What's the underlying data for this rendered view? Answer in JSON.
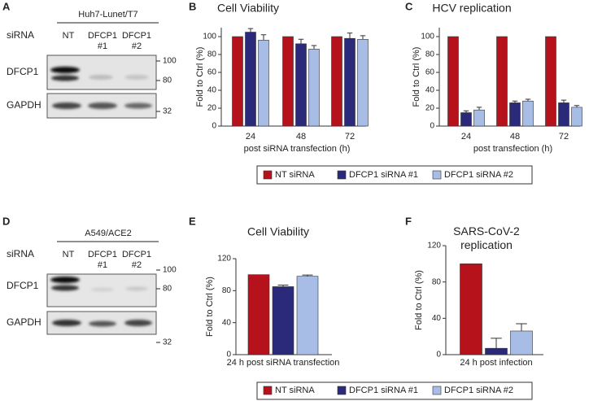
{
  "blots": [
    {
      "panel": "A",
      "cell_line": "Huh7-Lunet/T7",
      "row_header": "siRNA",
      "lanes": [
        "NT",
        "DFCP1 #1",
        "DFCP1 #2"
      ],
      "rows": [
        "DFCP1",
        "GAPDH"
      ],
      "markers": [
        "100",
        "80",
        "32"
      ]
    },
    {
      "panel": "D",
      "cell_line": "A549/ACE2",
      "row_header": "siRNA",
      "lanes": [
        "NT",
        "DFCP1 #1",
        "DFCP1 #2"
      ],
      "rows": [
        "DFCP1",
        "GAPDH"
      ],
      "markers": [
        "100",
        "80",
        "32"
      ]
    }
  ],
  "chart_data": [
    {
      "type": "bar",
      "panel": "B",
      "title": "Cell Viability",
      "x_label": "post siRNA transfection (h)",
      "y_label": "Fold to Ctrl (%)",
      "categories": [
        "24",
        "48",
        "72"
      ],
      "ylim": [
        0,
        110
      ],
      "yticks": [
        0,
        20,
        40,
        60,
        80,
        100
      ],
      "series": [
        {
          "name": "NT siRNA",
          "color": "#b5121b",
          "values": [
            100,
            100,
            100
          ]
        },
        {
          "name": "DFCP1 siRNA #1",
          "color": "#2b2a7a",
          "values": [
            105,
            92,
            98
          ],
          "errors": [
            4,
            5,
            6
          ]
        },
        {
          "name": "DFCP1 siRNA #2",
          "color": "#a8bde6",
          "values": [
            96,
            86,
            97
          ],
          "errors": [
            6,
            4,
            4
          ]
        }
      ]
    },
    {
      "type": "bar",
      "panel": "C",
      "title": "HCV replication",
      "x_label": "post transfection (h)",
      "y_label": "Fold to Ctrl (%)",
      "categories": [
        "24",
        "48",
        "72"
      ],
      "ylim": [
        0,
        110
      ],
      "yticks": [
        0,
        20,
        40,
        60,
        80,
        100
      ],
      "series": [
        {
          "name": "NT siRNA",
          "color": "#b5121b",
          "values": [
            100,
            100,
            100
          ]
        },
        {
          "name": "DFCP1 siRNA #1",
          "color": "#2b2a7a",
          "values": [
            15,
            26,
            26
          ],
          "errors": [
            2,
            2,
            3
          ]
        },
        {
          "name": "DFCP1 siRNA #2",
          "color": "#a8bde6",
          "values": [
            18,
            28,
            21
          ],
          "errors": [
            3,
            2,
            2
          ]
        }
      ]
    },
    {
      "type": "bar",
      "panel": "E",
      "title": "Cell Viability",
      "y_label": "Fold to Ctrl (%)",
      "categories": [
        "24 h post siRNA transfection"
      ],
      "ylim": [
        0,
        120
      ],
      "yticks": [
        0,
        40,
        80,
        120
      ],
      "series": [
        {
          "name": "NT siRNA",
          "color": "#b5121b",
          "values": [
            100
          ]
        },
        {
          "name": "DFCP1 siRNA #1",
          "color": "#2b2a7a",
          "values": [
            85
          ],
          "errors": [
            2
          ]
        },
        {
          "name": "DFCP1 siRNA #2",
          "color": "#a8bde6",
          "values": [
            98
          ],
          "errors": [
            1.5
          ]
        }
      ]
    },
    {
      "type": "bar",
      "panel": "F",
      "title": "SARS-CoV-2 replication",
      "y_label": "Fold to Ctrl (%)",
      "categories": [
        "24 h post infection"
      ],
      "ylim": [
        0,
        120
      ],
      "yticks": [
        0,
        40,
        80,
        120
      ],
      "series": [
        {
          "name": "NT siRNA",
          "color": "#b5121b",
          "values": [
            100
          ]
        },
        {
          "name": "DFCP1 siRNA #1",
          "color": "#2b2a7a",
          "values": [
            7
          ],
          "errors": [
            11
          ]
        },
        {
          "name": "DFCP1 siRNA #2",
          "color": "#a8bde6",
          "values": [
            26
          ],
          "errors": [
            8
          ]
        }
      ]
    }
  ]
}
